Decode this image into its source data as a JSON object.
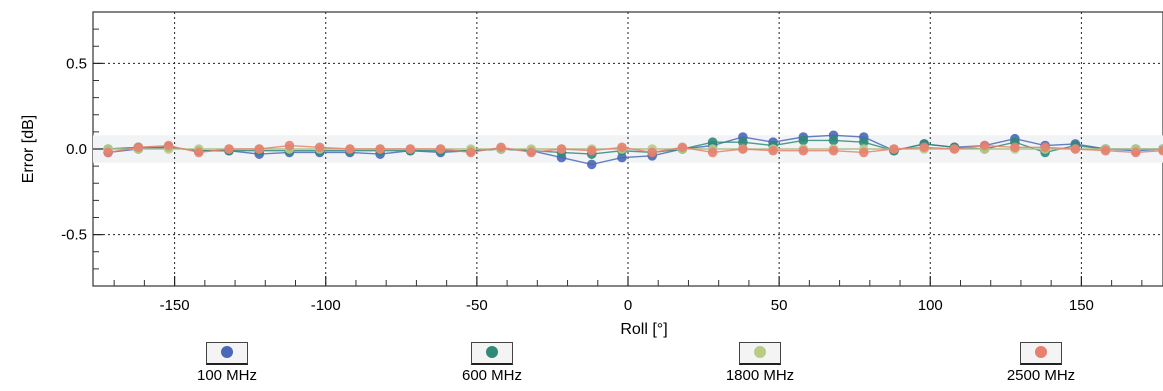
{
  "chart_data": {
    "type": "line",
    "title": "",
    "xlabel": "Roll [°]",
    "ylabel": "Error [dB]",
    "xlim": [
      -177,
      177
    ],
    "ylim": [
      -0.8,
      0.8
    ],
    "x_ticks": [
      -150,
      -100,
      -50,
      0,
      50,
      100,
      150
    ],
    "x_tick_labels": [
      "-150",
      "-100",
      "-50",
      "0",
      "50",
      "100",
      "150"
    ],
    "y_ticks": [
      0.5,
      0.0,
      -0.5
    ],
    "y_tick_labels": [
      "0.5",
      "0.0",
      "-0.5"
    ],
    "grid": true,
    "legend_position": "bottom",
    "x": [
      -172,
      -162,
      -152,
      -142,
      -132,
      -122,
      -112,
      -102,
      -92,
      -82,
      -72,
      -62,
      -52,
      -42,
      -32,
      -22,
      -12,
      -2,
      8,
      18,
      28,
      38,
      48,
      58,
      68,
      78,
      88,
      98,
      108,
      118,
      128,
      138,
      148,
      158,
      168,
      177
    ],
    "series": [
      {
        "name": "100 MHz",
        "color": "#4a68b8",
        "values": [
          -0.02,
          0.0,
          0.01,
          -0.01,
          -0.01,
          -0.03,
          -0.02,
          -0.02,
          -0.02,
          -0.03,
          -0.01,
          -0.02,
          -0.01,
          0.0,
          -0.01,
          -0.05,
          -0.09,
          -0.05,
          -0.04,
          0.0,
          0.02,
          0.07,
          0.04,
          0.07,
          0.08,
          0.07,
          -0.01,
          0.03,
          0.01,
          0.02,
          0.06,
          0.02,
          0.03,
          0.0,
          -0.01,
          0.0
        ]
      },
      {
        "name": "600 MHz",
        "color": "#2f8a78",
        "values": [
          0.0,
          0.01,
          0.01,
          -0.01,
          -0.01,
          -0.01,
          -0.01,
          -0.01,
          -0.01,
          -0.01,
          -0.01,
          -0.01,
          -0.01,
          0.0,
          -0.01,
          -0.02,
          -0.03,
          -0.01,
          -0.02,
          0.0,
          0.04,
          0.04,
          0.02,
          0.05,
          0.05,
          0.04,
          -0.01,
          0.03,
          0.01,
          0.0,
          0.04,
          -0.02,
          0.02,
          0.0,
          0.0,
          0.0
        ]
      },
      {
        "name": "1800 MHz",
        "color": "#b8cc88",
        "values": [
          0.0,
          0.0,
          0.0,
          0.0,
          0.0,
          0.0,
          0.0,
          0.0,
          0.0,
          0.0,
          0.0,
          0.0,
          0.0,
          0.0,
          0.0,
          0.0,
          0.0,
          0.0,
          0.0,
          0.0,
          0.0,
          0.0,
          0.0,
          0.0,
          0.0,
          0.0,
          0.0,
          0.0,
          0.0,
          0.0,
          0.0,
          0.0,
          0.0,
          0.0,
          0.0,
          0.0
        ]
      },
      {
        "name": "2500 MHz",
        "color": "#e88070",
        "values": [
          -0.02,
          0.01,
          0.02,
          -0.02,
          0.0,
          0.0,
          0.02,
          0.01,
          0.0,
          0.0,
          0.0,
          0.0,
          -0.02,
          0.01,
          -0.02,
          0.0,
          -0.01,
          0.01,
          -0.02,
          0.01,
          -0.02,
          0.0,
          -0.01,
          -0.01,
          -0.01,
          -0.02,
          0.0,
          0.01,
          0.0,
          0.02,
          0.01,
          0.01,
          0.0,
          -0.01,
          -0.02,
          -0.01
        ]
      }
    ]
  }
}
